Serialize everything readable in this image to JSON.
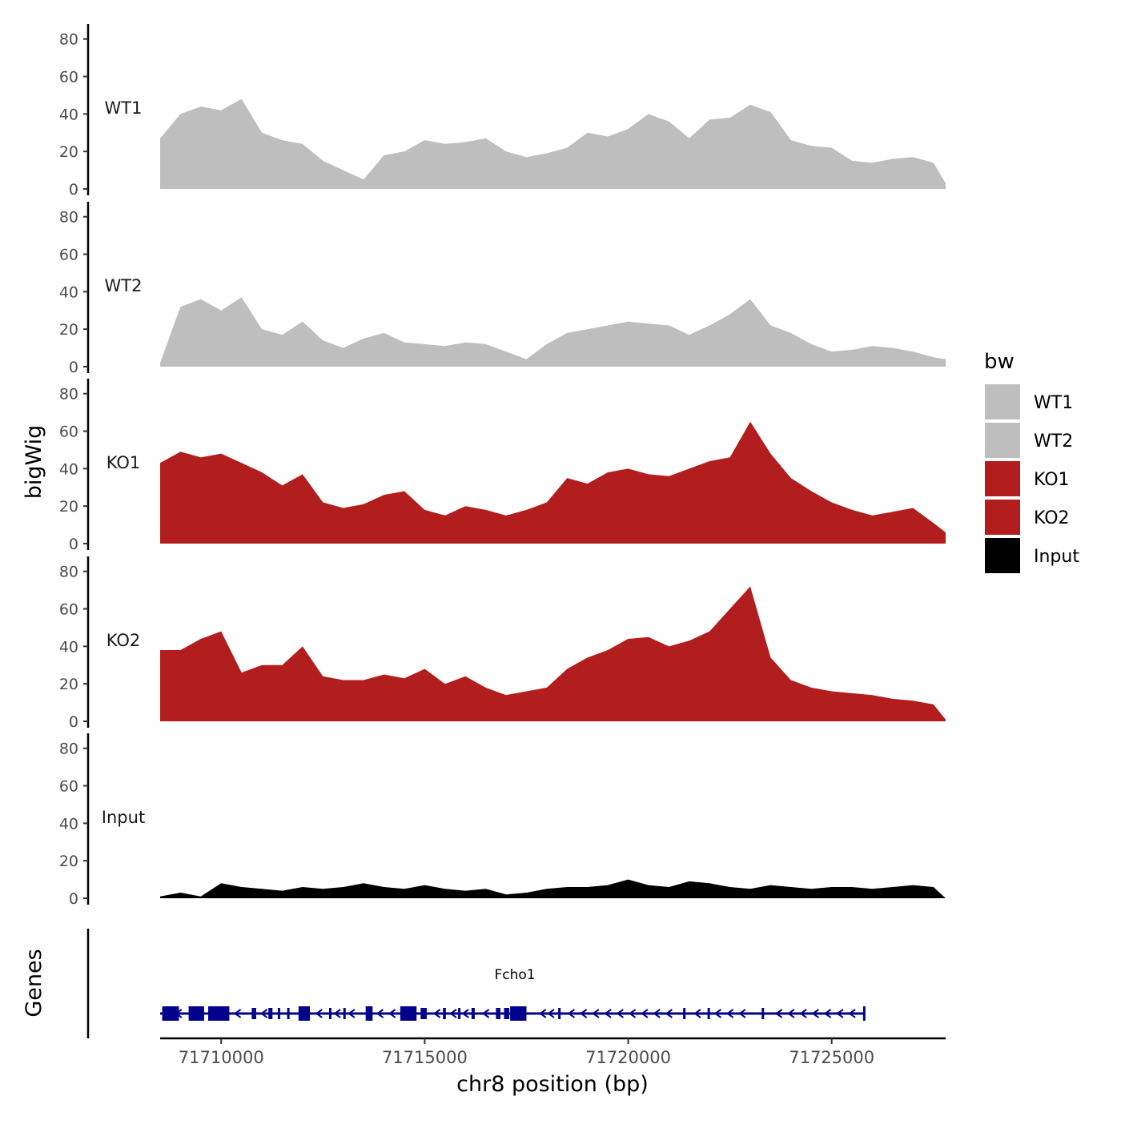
{
  "chart_data": {
    "type": "area",
    "ylabel": "bigWig",
    "xlabel": "chr8 position (bp)",
    "xlim": [
      71708500,
      71727800
    ],
    "ylim": [
      0,
      88
    ],
    "y_ticks": [
      0,
      20,
      40,
      60,
      80
    ],
    "y_tick_labels": [
      "0",
      "20",
      "40",
      "60",
      "80"
    ],
    "x_ticks": [
      71710000,
      71715000,
      71720000,
      71725000
    ],
    "x_tick_labels": [
      "71710000",
      "71715000",
      "71720000",
      "71725000"
    ],
    "legend": {
      "title": "bw",
      "placement": "right",
      "entries": [
        {
          "label": "WT1",
          "color": "#bebebe"
        },
        {
          "label": "WT2",
          "color": "#bebebe"
        },
        {
          "label": "KO1",
          "color": "#b21e1e"
        },
        {
          "label": "KO2",
          "color": "#b21e1e"
        },
        {
          "label": "Input",
          "color": "#000000"
        }
      ]
    },
    "x": [
      71708500,
      71709000,
      71709500,
      71710000,
      71710500,
      71711000,
      71711500,
      71712000,
      71712500,
      71713000,
      71713500,
      71714000,
      71714500,
      71715000,
      71715500,
      71716000,
      71716500,
      71717000,
      71717500,
      71718000,
      71718500,
      71719000,
      71719500,
      71720000,
      71720500,
      71721000,
      71721500,
      71722000,
      71722500,
      71723000,
      71723500,
      71724000,
      71724500,
      71725000,
      71725500,
      71726000,
      71726500,
      71727000,
      71727500,
      71727800
    ],
    "series": [
      {
        "name": "WT1",
        "color": "#bebebe",
        "values": [
          27,
          40,
          44,
          42,
          48,
          30,
          26,
          24,
          15,
          10,
          5,
          18,
          20,
          26,
          24,
          25,
          27,
          20,
          17,
          19,
          22,
          30,
          28,
          32,
          40,
          36,
          27,
          37,
          38,
          45,
          41,
          26,
          23,
          22,
          15,
          14,
          16,
          17,
          14,
          3
        ]
      },
      {
        "name": "WT2",
        "color": "#bebebe",
        "values": [
          2,
          32,
          36,
          30,
          37,
          20,
          17,
          24,
          14,
          10,
          15,
          18,
          13,
          12,
          11,
          13,
          12,
          8,
          4,
          12,
          18,
          20,
          22,
          24,
          23,
          22,
          17,
          22,
          28,
          36,
          22,
          18,
          12,
          8,
          9,
          11,
          10,
          8,
          5,
          4
        ]
      },
      {
        "name": "KO1",
        "color": "#b21e1e",
        "values": [
          43,
          49,
          46,
          48,
          43,
          38,
          31,
          37,
          22,
          19,
          21,
          26,
          28,
          18,
          15,
          20,
          18,
          15,
          18,
          22,
          35,
          32,
          38,
          40,
          37,
          36,
          40,
          44,
          46,
          65,
          48,
          35,
          28,
          22,
          18,
          15,
          17,
          19,
          11,
          6
        ]
      },
      {
        "name": "KO2",
        "color": "#b21e1e",
        "values": [
          38,
          38,
          44,
          48,
          26,
          30,
          30,
          40,
          24,
          22,
          22,
          25,
          23,
          28,
          20,
          24,
          18,
          14,
          16,
          18,
          28,
          34,
          38,
          44,
          45,
          40,
          43,
          48,
          60,
          72,
          34,
          22,
          18,
          16,
          15,
          14,
          12,
          11,
          9,
          1
        ]
      },
      {
        "name": "Input",
        "color": "#000000",
        "values": [
          1,
          3,
          1,
          8,
          6,
          5,
          4,
          6,
          5,
          6,
          8,
          6,
          5,
          7,
          5,
          4,
          5,
          2,
          3,
          5,
          6,
          6,
          7,
          10,
          7,
          6,
          9,
          8,
          6,
          5,
          7,
          6,
          5,
          6,
          6,
          5,
          6,
          7,
          6,
          0
        ]
      }
    ],
    "genes": {
      "label": "Genes",
      "gene_name": "Fcho1",
      "strand": "-",
      "color": "#00008b",
      "start": 71708500,
      "end": 71725800,
      "exons": [
        {
          "start": 71708550,
          "end": 71708960
        },
        {
          "start": 71709200,
          "end": 71709580
        },
        {
          "start": 71709680,
          "end": 71710200
        },
        {
          "start": 71710750,
          "end": 71710860
        },
        {
          "start": 71711160,
          "end": 71711260
        },
        {
          "start": 71711390,
          "end": 71711430
        },
        {
          "start": 71711620,
          "end": 71711680
        },
        {
          "start": 71711900,
          "end": 71712180
        },
        {
          "start": 71712650,
          "end": 71712700
        },
        {
          "start": 71713000,
          "end": 71713040
        },
        {
          "start": 71713550,
          "end": 71713720
        },
        {
          "start": 71714400,
          "end": 71714800
        },
        {
          "start": 71714900,
          "end": 71715050
        },
        {
          "start": 71715450,
          "end": 71715520
        },
        {
          "start": 71715820,
          "end": 71715870
        },
        {
          "start": 71716150,
          "end": 71716230
        },
        {
          "start": 71716750,
          "end": 71716860
        },
        {
          "start": 71716950,
          "end": 71717080
        },
        {
          "start": 71717100,
          "end": 71717500
        },
        {
          "start": 71718280,
          "end": 71718340
        },
        {
          "start": 71721350,
          "end": 71721400
        },
        {
          "start": 71721950,
          "end": 71722000
        },
        {
          "start": 71723280,
          "end": 71723340
        }
      ],
      "arrows": [
        71708950,
        71710400,
        71711050,
        71712400,
        71712850,
        71713200,
        71713900,
        71714200,
        71715300,
        71715700,
        71716000,
        71716500,
        71717900,
        71718100,
        71718600,
        71718900,
        71719200,
        71719500,
        71719800,
        71720100,
        71720400,
        71720700,
        71721000,
        71721700,
        71722200,
        71722500,
        71722800,
        71723700,
        71724000,
        71724300,
        71724600,
        71724900,
        71725200,
        71725500
      ]
    }
  }
}
